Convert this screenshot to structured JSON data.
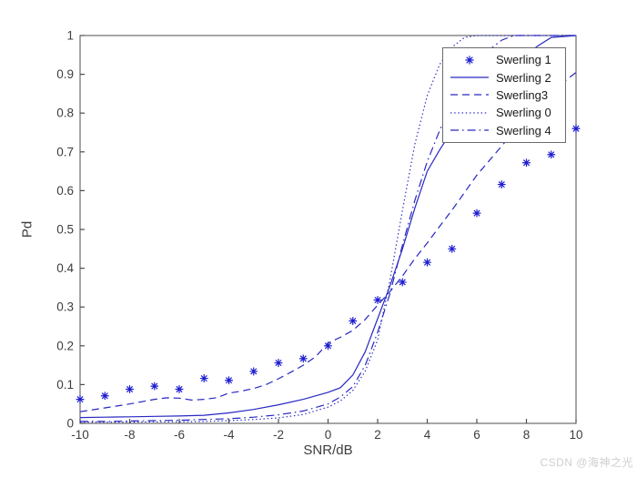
{
  "watermark": "CSDN @海神之光",
  "colors": {
    "curve_line": "#2727c3",
    "curve_marker": "#1d1dd0",
    "axis": "#4d4d4d",
    "tick_label": "#3d3d3d",
    "axis_label": "#3d3d3d",
    "watermark": "#cfcfcf",
    "legend_border": "#6b6b6b",
    "background": "#ffffff"
  },
  "chart_data": {
    "type": "line",
    "title": "",
    "xlabel": "SNR/dB",
    "ylabel": "Pd",
    "xlim": [
      -10,
      10
    ],
    "ylim": [
      0,
      1
    ],
    "grid": false,
    "legend_position": "upper-right-inside",
    "x_tick_values": [
      -10,
      -8,
      -6,
      -4,
      -2,
      0,
      2,
      4,
      6,
      8,
      10
    ],
    "x_tick_labels": [
      "-10",
      "-8",
      "-6",
      "-4",
      "-2",
      "0",
      "2",
      "4",
      "6",
      "8",
      "10"
    ],
    "y_tick_values": [
      0,
      0.1,
      0.2,
      0.3,
      0.4,
      0.5,
      0.6,
      0.7,
      0.8,
      0.9,
      1
    ],
    "y_tick_labels": [
      "0",
      "0.1",
      "0.2",
      "0.3",
      "0.4",
      "0.5",
      "0.6",
      "0.7",
      "0.8",
      "0.9",
      "1"
    ],
    "series": [
      {
        "name": "Swerling 1",
        "style": "asterisk-markers",
        "x": [
          -10,
          -9,
          -8,
          -7,
          -6,
          -5,
          -4,
          -3,
          -2,
          -1,
          0,
          1,
          2,
          3,
          4,
          5,
          6,
          7,
          8,
          9,
          10
        ],
        "y": [
          0.062,
          0.071,
          0.088,
          0.096,
          0.088,
          0.116,
          0.111,
          0.134,
          0.156,
          0.167,
          0.2,
          0.264,
          0.318,
          0.364,
          0.415,
          0.45,
          0.542,
          0.616,
          0.672,
          0.693,
          0.76
        ]
      },
      {
        "name": "Swerling 2",
        "style": "solid",
        "x": [
          -10,
          -9,
          -8,
          -7,
          -6,
          -5,
          -4,
          -3,
          -2,
          -1,
          0,
          0.5,
          1,
          1.5,
          2,
          2.5,
          3,
          3.5,
          4,
          4.5,
          5,
          5.5,
          6,
          6.5,
          7,
          7.5,
          8,
          8.5,
          9,
          10
        ],
        "y": [
          0.015,
          0.016,
          0.017,
          0.018,
          0.019,
          0.021,
          0.027,
          0.036,
          0.048,
          0.062,
          0.08,
          0.092,
          0.125,
          0.185,
          0.27,
          0.355,
          0.45,
          0.555,
          0.65,
          0.705,
          0.755,
          0.79,
          0.825,
          0.86,
          0.893,
          0.922,
          0.952,
          0.975,
          0.995,
          1.0
        ]
      },
      {
        "name": "Swerling3",
        "style": "dashed",
        "x": [
          -10,
          -9,
          -8,
          -7,
          -6.5,
          -6,
          -5.5,
          -5,
          -4.5,
          -4,
          -3.5,
          -3,
          -2.5,
          -2,
          -1.5,
          -1,
          -0.5,
          0,
          0.5,
          1,
          1.5,
          2,
          2.5,
          3,
          3.5,
          4,
          4.5,
          5,
          6,
          7,
          8,
          9,
          10
        ],
        "y": [
          0.03,
          0.04,
          0.05,
          0.062,
          0.066,
          0.065,
          0.06,
          0.062,
          0.066,
          0.078,
          0.083,
          0.09,
          0.1,
          0.115,
          0.132,
          0.15,
          0.172,
          0.207,
          0.222,
          0.24,
          0.268,
          0.305,
          0.34,
          0.38,
          0.425,
          0.465,
          0.508,
          0.55,
          0.64,
          0.715,
          0.79,
          0.855,
          0.905
        ]
      },
      {
        "name": "Swerling 0",
        "style": "dotted",
        "x": [
          -10,
          -9,
          -8,
          -7,
          -6,
          -5,
          -4,
          -3,
          -2,
          -1,
          0,
          0.5,
          1,
          1.5,
          2,
          2.5,
          3,
          3.5,
          4,
          4.5,
          5,
          5.5,
          6,
          7,
          8,
          9,
          10
        ],
        "y": [
          0.003,
          0.003,
          0.003,
          0.004,
          0.004,
          0.005,
          0.007,
          0.01,
          0.014,
          0.023,
          0.042,
          0.058,
          0.085,
          0.135,
          0.215,
          0.37,
          0.55,
          0.72,
          0.845,
          0.925,
          0.97,
          0.995,
          1.0,
          1.0,
          1.0,
          1.0,
          1.0
        ]
      },
      {
        "name": "Swerling 4",
        "style": "dashdot",
        "x": [
          -10,
          -9,
          -8,
          -7,
          -6,
          -5,
          -4,
          -3,
          -2,
          -1,
          0,
          0.5,
          1,
          1.5,
          2,
          2.5,
          3,
          3.5,
          4,
          4.5,
          5,
          5.5,
          6,
          6.5,
          7,
          7.5,
          8,
          9,
          10
        ],
        "y": [
          0.005,
          0.005,
          0.006,
          0.007,
          0.008,
          0.01,
          0.012,
          0.016,
          0.022,
          0.032,
          0.05,
          0.068,
          0.095,
          0.15,
          0.235,
          0.335,
          0.46,
          0.575,
          0.675,
          0.755,
          0.825,
          0.882,
          0.928,
          0.963,
          0.988,
          1.0,
          1.0,
          1.0,
          1.0
        ]
      }
    ]
  }
}
